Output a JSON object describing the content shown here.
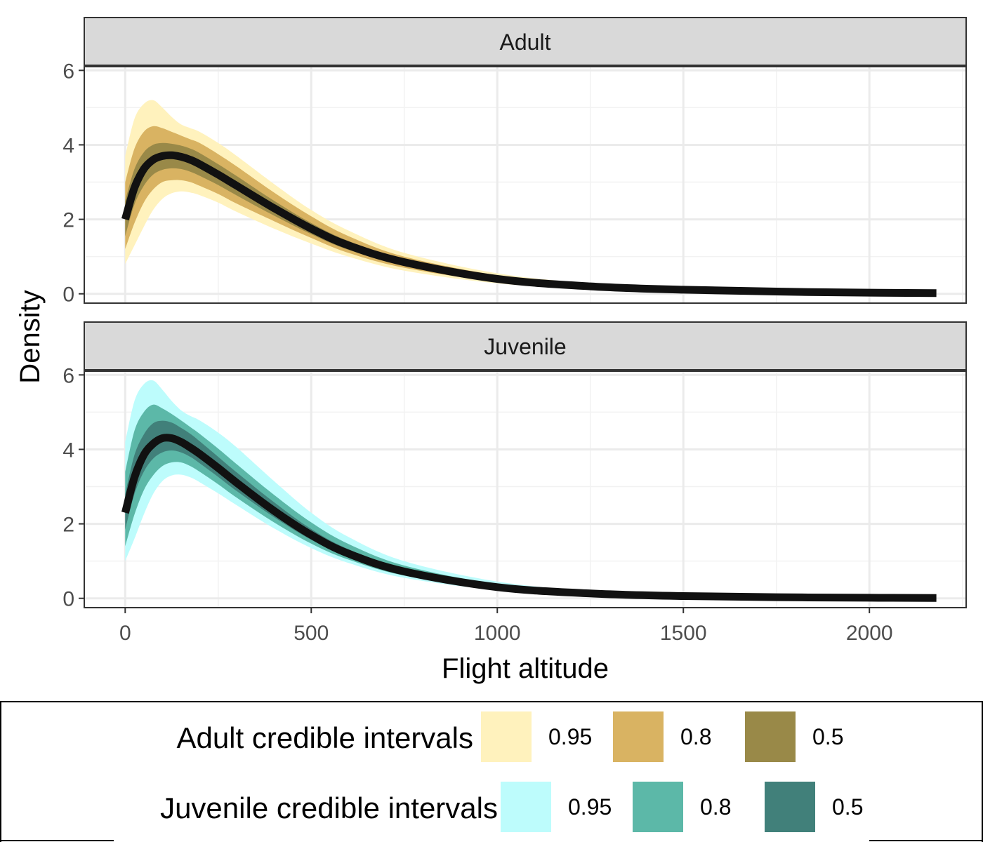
{
  "chart_data": {
    "type": "area",
    "xlabel": "Flight altitude",
    "ylabel": "Density",
    "xlim": [
      -110,
      2260
    ],
    "ylim": [
      -0.25,
      6.1
    ],
    "x_ticks": [
      0,
      500,
      1000,
      1500,
      2000
    ],
    "y_ticks": [
      0,
      2,
      4,
      6
    ],
    "grid": true,
    "legend_position": "bottom",
    "panels": [
      {
        "strip_label": "Adult",
        "legend_title": "Adult credible intervals",
        "x": [
          0,
          25,
          50,
          75,
          100,
          125,
          150,
          175,
          200,
          250,
          300,
          400,
          500,
          600,
          750,
          1000,
          1250,
          1500,
          1750,
          2000,
          2180
        ],
        "median": [
          2.0,
          2.85,
          3.35,
          3.6,
          3.7,
          3.72,
          3.68,
          3.6,
          3.48,
          3.2,
          2.9,
          2.3,
          1.75,
          1.3,
          0.85,
          0.4,
          0.2,
          0.11,
          0.06,
          0.03,
          0.02
        ],
        "intervals": [
          {
            "level": "0.95",
            "color": "#FFF2BD",
            "lower": [
              0.8,
              1.3,
              1.8,
              2.25,
              2.55,
              2.7,
              2.75,
              2.72,
              2.65,
              2.45,
              2.2,
              1.75,
              1.35,
              1.0,
              0.62,
              0.28,
              0.13,
              0.07,
              0.04,
              0.02,
              0.01
            ],
            "upper": [
              3.7,
              4.7,
              5.1,
              5.2,
              5.0,
              4.75,
              4.55,
              4.45,
              4.35,
              4.05,
              3.7,
              2.95,
              2.25,
              1.7,
              1.1,
              0.55,
              0.28,
              0.16,
              0.09,
              0.05,
              0.03
            ]
          },
          {
            "level": "0.8",
            "color": "#D9B362",
            "lower": [
              1.2,
              1.9,
              2.45,
              2.8,
              3.0,
              3.05,
              3.05,
              3.0,
              2.9,
              2.68,
              2.42,
              1.95,
              1.5,
              1.1,
              0.7,
              0.32,
              0.16,
              0.09,
              0.05,
              0.025,
              0.015
            ],
            "upper": [
              3.0,
              3.9,
              4.35,
              4.5,
              4.45,
              4.35,
              4.25,
              4.15,
              4.05,
              3.75,
              3.42,
              2.72,
              2.08,
              1.55,
              1.0,
              0.5,
              0.25,
              0.14,
              0.08,
              0.04,
              0.025
            ]
          },
          {
            "level": "0.5",
            "color": "#998948",
            "lower": [
              1.55,
              2.4,
              2.9,
              3.2,
              3.33,
              3.37,
              3.35,
              3.28,
              3.17,
              2.92,
              2.64,
              2.1,
              1.6,
              1.18,
              0.77,
              0.36,
              0.18,
              0.1,
              0.055,
              0.028,
              0.017
            ],
            "upper": [
              2.5,
              3.35,
              3.8,
              4.0,
              4.05,
              4.03,
              3.98,
              3.9,
              3.78,
              3.48,
              3.16,
              2.5,
              1.9,
              1.42,
              0.93,
              0.44,
              0.22,
              0.12,
              0.07,
              0.035,
              0.022
            ]
          }
        ]
      },
      {
        "strip_label": "Juvenile",
        "legend_title": "Juvenile credible intervals",
        "x": [
          0,
          25,
          50,
          75,
          100,
          125,
          150,
          175,
          200,
          250,
          300,
          400,
          500,
          600,
          750,
          1000,
          1250,
          1500,
          1750,
          2000,
          2180
        ],
        "median": [
          2.3,
          3.25,
          3.85,
          4.15,
          4.3,
          4.3,
          4.2,
          4.05,
          3.88,
          3.5,
          3.1,
          2.35,
          1.7,
          1.2,
          0.72,
          0.3,
          0.13,
          0.06,
          0.03,
          0.015,
          0.01
        ],
        "intervals": [
          {
            "level": "0.95",
            "color": "#BDFCFC",
            "lower": [
              1.0,
              1.6,
              2.25,
              2.8,
              3.15,
              3.3,
              3.32,
              3.25,
              3.12,
              2.82,
              2.5,
              1.88,
              1.35,
              0.95,
              0.55,
              0.22,
              0.09,
              0.04,
              0.02,
              0.01,
              0.005
            ],
            "upper": [
              4.2,
              5.3,
              5.75,
              5.85,
              5.6,
              5.3,
              5.05,
              4.9,
              4.78,
              4.45,
              4.05,
              3.15,
              2.3,
              1.65,
              1.0,
              0.45,
              0.2,
              0.1,
              0.05,
              0.025,
              0.015
            ]
          },
          {
            "level": "0.8",
            "color": "#5CB8A8",
            "lower": [
              1.4,
              2.25,
              2.9,
              3.3,
              3.55,
              3.65,
              3.65,
              3.55,
              3.4,
              3.06,
              2.7,
              2.04,
              1.47,
              1.04,
              0.61,
              0.25,
              0.1,
              0.046,
              0.023,
              0.012,
              0.007
            ],
            "upper": [
              3.4,
              4.5,
              5.0,
              5.2,
              5.1,
              4.95,
              4.78,
              4.6,
              4.42,
              4.02,
              3.6,
              2.78,
              2.04,
              1.46,
              0.88,
              0.38,
              0.17,
              0.08,
              0.04,
              0.02,
              0.013
            ]
          },
          {
            "level": "0.5",
            "color": "#41807A",
            "lower": [
              1.85,
              2.8,
              3.4,
              3.75,
              3.92,
              3.97,
              3.92,
              3.8,
              3.63,
              3.26,
              2.88,
              2.18,
              1.57,
              1.1,
              0.66,
              0.27,
              0.115,
              0.053,
              0.026,
              0.013,
              0.008
            ],
            "upper": [
              2.8,
              3.85,
              4.4,
              4.7,
              4.77,
              4.72,
              4.58,
              4.42,
              4.22,
              3.8,
              3.38,
              2.58,
              1.86,
              1.32,
              0.8,
              0.34,
              0.15,
              0.07,
              0.035,
              0.018,
              0.012
            ]
          }
        ]
      }
    ]
  }
}
